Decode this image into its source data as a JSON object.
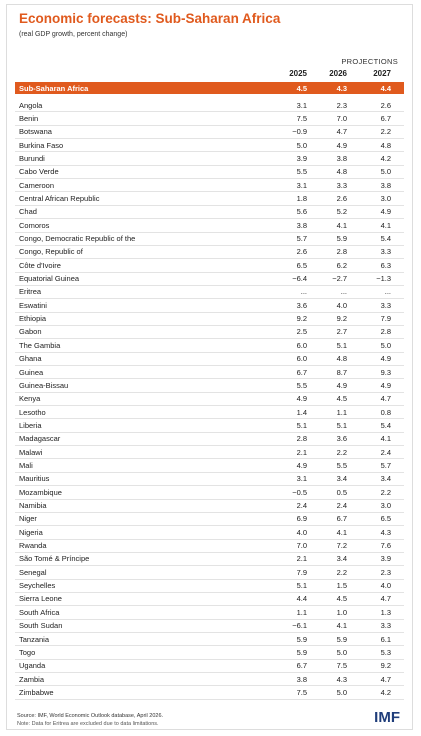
{
  "header": {
    "title": "Economic forecasts: Sub-Saharan Africa",
    "subtitle": "(real GDP growth, percent change)"
  },
  "table": {
    "projections_label": "PROJECTIONS",
    "columns": [
      "2025",
      "2026",
      "2027"
    ],
    "region": {
      "name": "Sub-Saharan Africa",
      "values": [
        "4.5",
        "4.3",
        "4.4"
      ]
    },
    "rows": [
      {
        "name": "Angola",
        "values": [
          "3.1",
          "2.3",
          "2.6"
        ]
      },
      {
        "name": "Benin",
        "values": [
          "7.5",
          "7.0",
          "6.7"
        ]
      },
      {
        "name": "Botswana",
        "values": [
          "−0.9",
          "4.7",
          "2.2"
        ]
      },
      {
        "name": "Burkina Faso",
        "values": [
          "5.0",
          "4.9",
          "4.8"
        ]
      },
      {
        "name": "Burundi",
        "values": [
          "3.9",
          "3.8",
          "4.2"
        ]
      },
      {
        "name": "Cabo Verde",
        "values": [
          "5.5",
          "4.8",
          "5.0"
        ]
      },
      {
        "name": "Cameroon",
        "values": [
          "3.1",
          "3.3",
          "3.8"
        ]
      },
      {
        "name": "Central African Republic",
        "values": [
          "1.8",
          "2.6",
          "3.0"
        ]
      },
      {
        "name": "Chad",
        "values": [
          "5.6",
          "5.2",
          "4.9"
        ]
      },
      {
        "name": "Comoros",
        "values": [
          "3.8",
          "4.1",
          "4.1"
        ]
      },
      {
        "name": "Congo, Democratic Republic of the",
        "values": [
          "5.7",
          "5.9",
          "5.4"
        ]
      },
      {
        "name": "Congo, Republic of",
        "values": [
          "2.6",
          "2.8",
          "3.3"
        ]
      },
      {
        "name": "Côte d'Ivoire",
        "values": [
          "6.5",
          "6.2",
          "6.3"
        ]
      },
      {
        "name": "Equatorial Guinea",
        "values": [
          "−6.4",
          "−2.7",
          "−1.3"
        ]
      },
      {
        "name": "Eritrea",
        "values": [
          "...",
          "...",
          "..."
        ]
      },
      {
        "name": "Eswatini",
        "values": [
          "3.6",
          "4.0",
          "3.3"
        ]
      },
      {
        "name": "Ethiopia",
        "values": [
          "9.2",
          "9.2",
          "7.9"
        ]
      },
      {
        "name": "Gabon",
        "values": [
          "2.5",
          "2.7",
          "2.8"
        ]
      },
      {
        "name": "The Gambia",
        "values": [
          "6.0",
          "5.1",
          "5.0"
        ]
      },
      {
        "name": "Ghana",
        "values": [
          "6.0",
          "4.8",
          "4.9"
        ]
      },
      {
        "name": "Guinea",
        "values": [
          "6.7",
          "8.7",
          "9.3"
        ]
      },
      {
        "name": "Guinea-Bissau",
        "values": [
          "5.5",
          "4.9",
          "4.9"
        ]
      },
      {
        "name": "Kenya",
        "values": [
          "4.9",
          "4.5",
          "4.7"
        ]
      },
      {
        "name": "Lesotho",
        "values": [
          "1.4",
          "1.1",
          "0.8"
        ]
      },
      {
        "name": "Liberia",
        "values": [
          "5.1",
          "5.1",
          "5.4"
        ]
      },
      {
        "name": "Madagascar",
        "values": [
          "2.8",
          "3.6",
          "4.1"
        ]
      },
      {
        "name": "Malawi",
        "values": [
          "2.1",
          "2.2",
          "2.4"
        ]
      },
      {
        "name": "Mali",
        "values": [
          "4.9",
          "5.5",
          "5.7"
        ]
      },
      {
        "name": "Mauritius",
        "values": [
          "3.1",
          "3.4",
          "3.4"
        ]
      },
      {
        "name": "Mozambique",
        "values": [
          "−0.5",
          "0.5",
          "2.2"
        ]
      },
      {
        "name": "Namibia",
        "values": [
          "2.4",
          "2.4",
          "3.0"
        ]
      },
      {
        "name": "Niger",
        "values": [
          "6.9",
          "6.7",
          "6.5"
        ]
      },
      {
        "name": "Nigeria",
        "values": [
          "4.0",
          "4.1",
          "4.3"
        ]
      },
      {
        "name": "Rwanda",
        "values": [
          "7.0",
          "7.2",
          "7.6"
        ]
      },
      {
        "name": "São Tomé & Príncipe",
        "values": [
          "2.1",
          "3.4",
          "3.9"
        ]
      },
      {
        "name": "Senegal",
        "values": [
          "7.9",
          "2.2",
          "2.3"
        ]
      },
      {
        "name": "Seychelles",
        "values": [
          "5.1",
          "1.5",
          "4.0"
        ]
      },
      {
        "name": "Sierra Leone",
        "values": [
          "4.4",
          "4.5",
          "4.7"
        ]
      },
      {
        "name": "South Africa",
        "values": [
          "1.1",
          "1.0",
          "1.3"
        ]
      },
      {
        "name": "South Sudan",
        "values": [
          "−6.1",
          "4.1",
          "3.3"
        ]
      },
      {
        "name": "Tanzania",
        "values": [
          "5.9",
          "5.9",
          "6.1"
        ]
      },
      {
        "name": "Togo",
        "values": [
          "5.9",
          "5.0",
          "5.3"
        ]
      },
      {
        "name": "Uganda",
        "values": [
          "6.7",
          "7.5",
          "9.2"
        ]
      },
      {
        "name": "Zambia",
        "values": [
          "3.8",
          "4.3",
          "4.7"
        ]
      },
      {
        "name": "Zimbabwe",
        "values": [
          "7.5",
          "5.0",
          "4.2"
        ]
      }
    ]
  },
  "footer": {
    "source": "Source: IMF, World Economic Outlook database, April 2026.",
    "note": "Note: Data for Eritrea are excluded due to data limitations.",
    "logo": "IMF"
  }
}
